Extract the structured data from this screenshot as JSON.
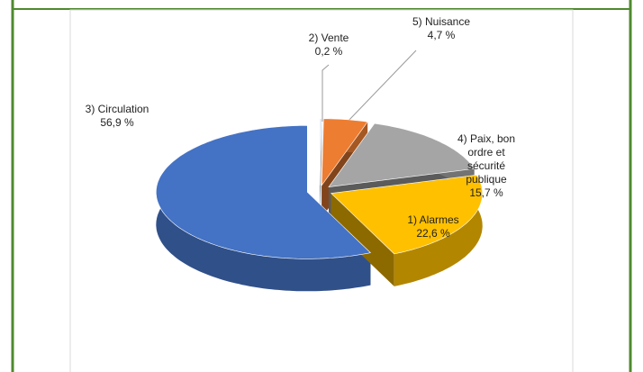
{
  "chart_data": {
    "type": "pie3d",
    "categories": [
      "2) Vente",
      "5) Nuisance",
      "4) Paix, bon ordre et sécurité publique",
      "1) Alarmes",
      "3) Circulation"
    ],
    "values": [
      0.2,
      4.7,
      15.7,
      22.6,
      56.9
    ],
    "value_labels": [
      "0,2 %",
      "4,7 %",
      "15,7 %",
      "22,6 %",
      "56,9 %"
    ],
    "colors": [
      "#dce6f2",
      "#ed7d31",
      "#a5a5a5",
      "#ffc000",
      "#4472c4"
    ]
  }
}
